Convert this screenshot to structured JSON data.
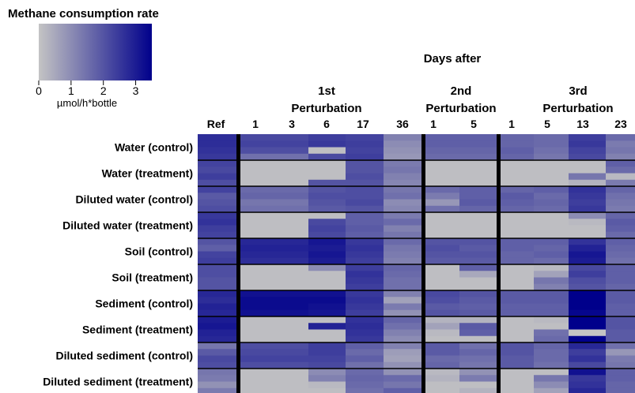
{
  "chart_data": {
    "type": "heatmap",
    "title": "Methane consumption rate",
    "colorbar": {
      "ticks": [
        "0",
        "1",
        "2",
        "3"
      ],
      "range": [
        0,
        3.5
      ],
      "unit_label": "µmol/h*bottle",
      "color_low": "#c4c4c4",
      "color_high": "#00008b"
    },
    "column_group_title": "Days after",
    "column_groups": [
      {
        "label_line1": "",
        "label_line2": "",
        "columns": [
          "Ref"
        ]
      },
      {
        "label_line1": "1st",
        "label_line2": "Perturbation",
        "columns": [
          "1",
          "3",
          "6",
          "17",
          "36"
        ]
      },
      {
        "label_line1": "2nd",
        "label_line2": "Perturbation",
        "columns": [
          "1",
          "5"
        ]
      },
      {
        "label_line1": "3rd",
        "label_line2": "Perturbation",
        "columns": [
          "1",
          "5",
          "13",
          "23"
        ]
      }
    ],
    "rows": [
      "Water (control)",
      "Water (treatment)",
      "Diluted water (control)",
      "Diluted water (treatment)",
      "Soil (control)",
      "Soil (treatment)",
      "Sediment (control)",
      "Sediment (treatment)",
      "Diluted sediment (control)",
      "Diluted sediment (treatment)"
    ],
    "replicates_per_row": 4,
    "values": [
      [
        [
          2.7,
          2.7,
          2.6,
          2.5
        ],
        [
          2.2,
          2.3,
          2.1,
          1.5
        ],
        [
          2.2,
          2.3,
          2.1,
          1.5
        ],
        [
          2.4,
          2.5,
          0.1,
          2.2
        ],
        [
          2.3,
          2.4,
          2.3,
          2.4
        ],
        [
          1.2,
          1.0,
          0.9,
          0.8
        ],
        [
          1.8,
          1.8,
          1.7,
          1.6
        ],
        [
          1.8,
          1.8,
          1.7,
          1.6
        ],
        [
          1.7,
          1.7,
          1.8,
          1.7
        ],
        [
          1.6,
          1.6,
          1.5,
          1.4
        ],
        [
          2.4,
          2.5,
          2.3,
          2.2
        ],
        [
          1.6,
          1.3,
          1.4,
          1.2
        ]
      ],
      [
        [
          2.3,
          2.2,
          2.4,
          2.1
        ],
        [
          0.1,
          0.1,
          0.1,
          0.1
        ],
        [
          0.1,
          0.1,
          0.1,
          0.1
        ],
        [
          0.1,
          0.1,
          0.1,
          2.0
        ],
        [
          2.0,
          2.0,
          2.1,
          2.0
        ],
        [
          1.3,
          1.4,
          1.2,
          1.1
        ],
        [
          0.1,
          0.1,
          0.1,
          0.1
        ],
        [
          0.1,
          0.1,
          0.1,
          0.1
        ],
        [
          0.1,
          0.1,
          0.1,
          0.1
        ],
        [
          0.1,
          0.1,
          0.1,
          0.1
        ],
        [
          0.1,
          0.1,
          1.4,
          0.3
        ],
        [
          1.8,
          1.6,
          0.2,
          1.3
        ]
      ],
      [
        [
          2.3,
          1.9,
          2.0,
          2.1
        ],
        [
          1.6,
          1.7,
          1.4,
          1.5
        ],
        [
          1.6,
          1.7,
          1.4,
          1.5
        ],
        [
          2.0,
          2.1,
          2.0,
          1.9
        ],
        [
          2.1,
          2.1,
          2.2,
          2.0
        ],
        [
          1.4,
          1.5,
          1.0,
          1.1
        ],
        [
          1.6,
          1.3,
          0.8,
          1.5
        ],
        [
          1.8,
          1.8,
          1.9,
          1.7
        ],
        [
          1.7,
          1.9,
          1.8,
          1.7
        ],
        [
          1.8,
          1.6,
          1.7,
          1.6
        ],
        [
          2.6,
          2.5,
          2.4,
          2.5
        ],
        [
          1.7,
          1.5,
          1.4,
          1.3
        ]
      ],
      [
        [
          2.5,
          2.6,
          2.4,
          2.3
        ],
        [
          0.1,
          0.1,
          0.1,
          0.1
        ],
        [
          0.1,
          0.1,
          0.1,
          0.1
        ],
        [
          0.1,
          2.2,
          2.3,
          2.2
        ],
        [
          1.8,
          1.8,
          1.9,
          1.8
        ],
        [
          1.3,
          1.6,
          1.2,
          1.4
        ],
        [
          0.1,
          0.1,
          0.1,
          0.1
        ],
        [
          0.1,
          0.1,
          0.1,
          0.1
        ],
        [
          0.1,
          0.1,
          0.1,
          0.1
        ],
        [
          0.1,
          0.1,
          0.1,
          0.1
        ],
        [
          1.0,
          0.2,
          0.1,
          0.1
        ],
        [
          1.7,
          1.9,
          1.8,
          1.6
        ]
      ],
      [
        [
          2.0,
          1.8,
          2.3,
          2.4
        ],
        [
          2.8,
          2.9,
          2.8,
          2.7
        ],
        [
          2.8,
          2.9,
          2.8,
          2.7
        ],
        [
          3.1,
          3.0,
          3.1,
          3.0
        ],
        [
          2.5,
          2.6,
          2.5,
          2.4
        ],
        [
          1.6,
          1.4,
          1.3,
          1.2
        ],
        [
          2.0,
          2.1,
          2.0,
          1.9
        ],
        [
          2.0,
          1.9,
          2.0,
          1.9
        ],
        [
          1.8,
          1.8,
          1.7,
          1.7
        ],
        [
          1.8,
          1.7,
          1.8,
          1.6
        ],
        [
          2.6,
          2.9,
          3.1,
          3.0
        ],
        [
          1.8,
          1.7,
          1.6,
          1.5
        ]
      ],
      [
        [
          2.1,
          2.1,
          2.0,
          2.0
        ],
        [
          0.1,
          0.1,
          0.1,
          0.1
        ],
        [
          0.1,
          0.1,
          0.1,
          0.1
        ],
        [
          1.0,
          0.1,
          0.1,
          0.1
        ],
        [
          2.4,
          2.6,
          2.5,
          2.4
        ],
        [
          1.7,
          1.6,
          1.5,
          1.5
        ],
        [
          0.1,
          0.1,
          0.1,
          0.1
        ],
        [
          1.8,
          0.5,
          0.1,
          0.1
        ],
        [
          0.1,
          0.1,
          0.1,
          0.1
        ],
        [
          0.2,
          0.6,
          1.4,
          1.2
        ],
        [
          2.2,
          2.4,
          2.1,
          2.0
        ],
        [
          1.8,
          1.8,
          1.8,
          1.7
        ]
      ],
      [
        [
          2.8,
          2.7,
          2.9,
          2.8
        ],
        [
          3.2,
          3.3,
          3.3,
          3.2
        ],
        [
          3.2,
          3.3,
          3.3,
          3.2
        ],
        [
          3.2,
          3.3,
          3.2,
          3.1
        ],
        [
          2.5,
          2.6,
          2.5,
          2.4
        ],
        [
          1.2,
          0.6,
          1.3,
          0.9
        ],
        [
          2.2,
          2.1,
          1.9,
          2.0
        ],
        [
          2.0,
          1.9,
          1.8,
          1.9
        ],
        [
          1.9,
          1.9,
          1.8,
          1.8
        ],
        [
          1.9,
          1.9,
          1.8,
          1.8
        ],
        [
          3.5,
          3.6,
          3.5,
          3.4
        ],
        [
          1.9,
          1.9,
          1.8,
          1.8
        ]
      ],
      [
        [
          3.0,
          3.1,
          2.9,
          2.8
        ],
        [
          0.1,
          0.1,
          0.1,
          0.1
        ],
        [
          0.1,
          0.1,
          0.1,
          0.1
        ],
        [
          0.1,
          2.9,
          0.1,
          0.1
        ],
        [
          2.6,
          2.7,
          2.6,
          2.5
        ],
        [
          1.7,
          1.5,
          1.2,
          1.0
        ],
        [
          0.3,
          0.6,
          0.2,
          0.1
        ],
        [
          0.3,
          1.9,
          1.8,
          0.1
        ],
        [
          0.1,
          0.1,
          0.1,
          0.1
        ],
        [
          0.2,
          0.1,
          1.5,
          1.6
        ],
        [
          3.8,
          3.6,
          0.0,
          3.5
        ],
        [
          2.0,
          2.0,
          1.9,
          1.9
        ]
      ],
      [
        [
          1.4,
          1.9,
          2.2,
          2.1
        ],
        [
          2.1,
          2.2,
          2.3,
          2.1
        ],
        [
          2.1,
          2.2,
          2.3,
          2.1
        ],
        [
          2.4,
          2.4,
          2.3,
          2.2
        ],
        [
          1.8,
          1.6,
          1.8,
          1.5
        ],
        [
          1.2,
          0.7,
          0.6,
          0.9
        ],
        [
          1.9,
          1.9,
          1.6,
          1.7
        ],
        [
          1.5,
          1.7,
          1.5,
          1.4
        ],
        [
          2.0,
          2.0,
          1.9,
          1.9
        ],
        [
          1.7,
          1.6,
          1.6,
          1.5
        ],
        [
          2.8,
          2.4,
          2.6,
          2.2
        ],
        [
          1.5,
          0.8,
          1.3,
          1.4
        ]
      ],
      [
        [
          1.4,
          1.3,
          0.9,
          1.3
        ],
        [
          0.1,
          0.1,
          0.1,
          0.1
        ],
        [
          0.1,
          0.1,
          0.1,
          0.1
        ],
        [
          1.0,
          1.2,
          0.2,
          0.1
        ],
        [
          1.6,
          1.7,
          1.6,
          1.5
        ],
        [
          0.9,
          1.6,
          1.4,
          1.8
        ],
        [
          0.2,
          0.3,
          0.1,
          0.1
        ],
        [
          0.9,
          1.3,
          0.1,
          0.3
        ],
        [
          0.1,
          0.1,
          0.1,
          0.1
        ],
        [
          0.1,
          1.4,
          1.0,
          0.6
        ],
        [
          3.2,
          2.5,
          2.6,
          2.8
        ],
        [
          1.8,
          1.8,
          1.7,
          1.7
        ]
      ]
    ]
  }
}
